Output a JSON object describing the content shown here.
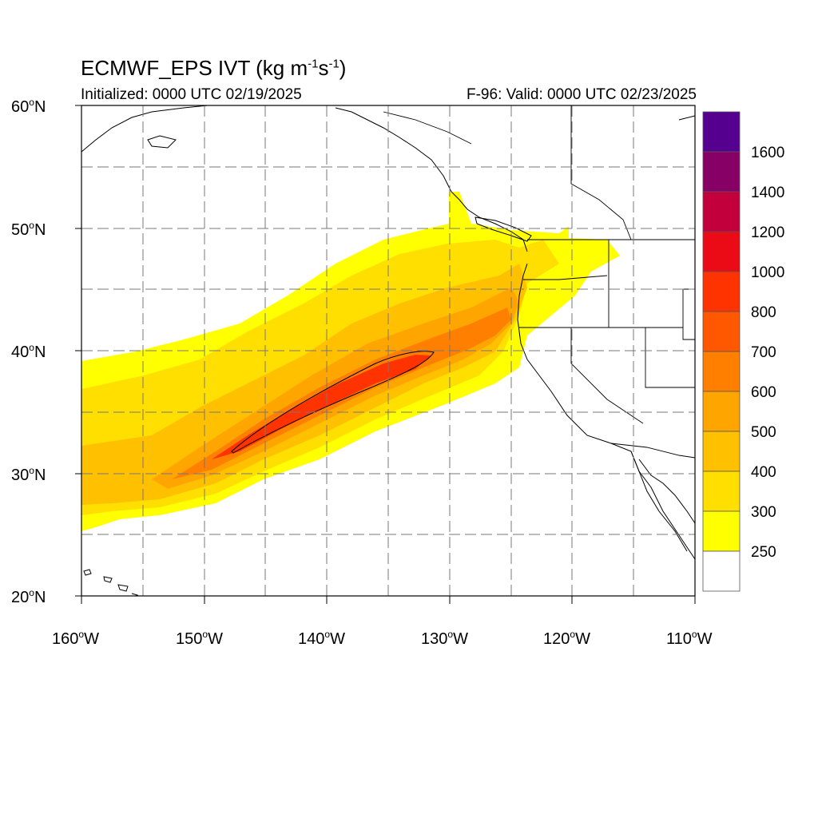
{
  "title": {
    "model": "ECMWF_EPS IVT (kg m",
    "exp1": "-1",
    "mid": "s",
    "exp2": "-1",
    "close": ")"
  },
  "subtitle_left": "Initialized: 0000 UTC 02/19/2025",
  "subtitle_right": "F-96: Valid: 0000 UTC 02/23/2025",
  "lat_labels": [
    "60",
    "50",
    "40",
    "30",
    "20"
  ],
  "lat_suffix": "N",
  "lon_labels": [
    "160",
    "150",
    "140",
    "130",
    "120",
    "110"
  ],
  "lon_suffix": "W",
  "degree_sign": "o",
  "colorbar": {
    "labels": [
      "1600",
      "1400",
      "1200",
      "1000",
      "800",
      "700",
      "600",
      "500",
      "400",
      "300",
      "250"
    ],
    "colors": [
      "#55008f",
      "#870066",
      "#c2003c",
      "#eb0b17",
      "#ff3300",
      "#ff5800",
      "#ff7f00",
      "#ffa500",
      "#ffc000",
      "#ffdf00",
      "#ffff00",
      "#ffffff"
    ]
  },
  "ivt_levels": {
    "250": "#ffff00",
    "300": "#ffdf00",
    "400": "#ffc000",
    "500": "#ffa500",
    "600": "#ff7f00",
    "700": "#ff5800",
    "800": "#ff3300"
  }
}
